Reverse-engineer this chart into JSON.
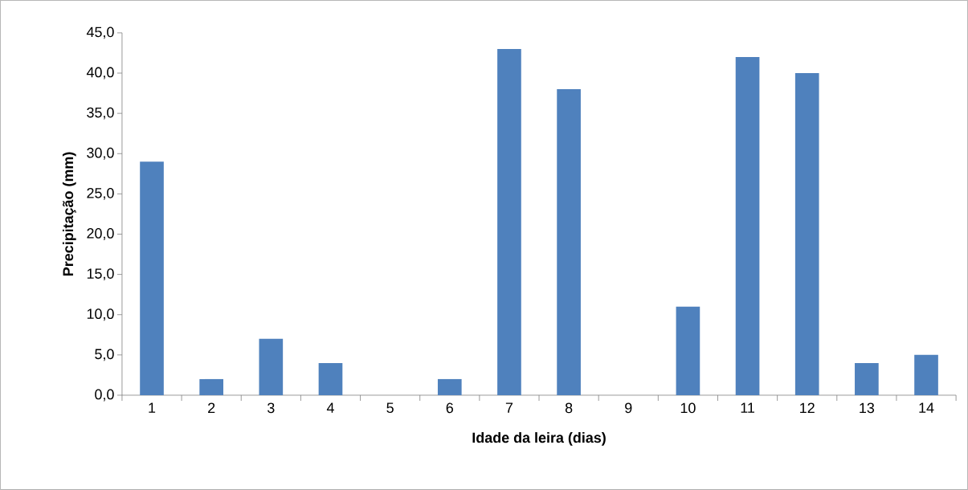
{
  "chart_data": {
    "type": "bar",
    "xlabel": "Idade da leira (dias)",
    "ylabel": "Precipitação (mm)",
    "categories": [
      "1",
      "2",
      "3",
      "4",
      "5",
      "6",
      "7",
      "8",
      "9",
      "10",
      "11",
      "12",
      "13",
      "14"
    ],
    "values": [
      29,
      2,
      7,
      4,
      0,
      2,
      43,
      38,
      0,
      11,
      42,
      40,
      4,
      5
    ],
    "color": "#4f81bd",
    "ylim": [
      0,
      45
    ],
    "yticks": [
      {
        "value": 0,
        "label": "0,0"
      },
      {
        "value": 5,
        "label": "5,0"
      },
      {
        "value": 10,
        "label": "10,0"
      },
      {
        "value": 15,
        "label": "15,0"
      },
      {
        "value": 20,
        "label": "20,0"
      },
      {
        "value": 25,
        "label": "25,0"
      },
      {
        "value": 30,
        "label": "30,0"
      },
      {
        "value": 35,
        "label": "35,0"
      },
      {
        "value": 40,
        "label": "40,0"
      },
      {
        "value": 45,
        "label": "45,0"
      }
    ],
    "grid": false
  }
}
